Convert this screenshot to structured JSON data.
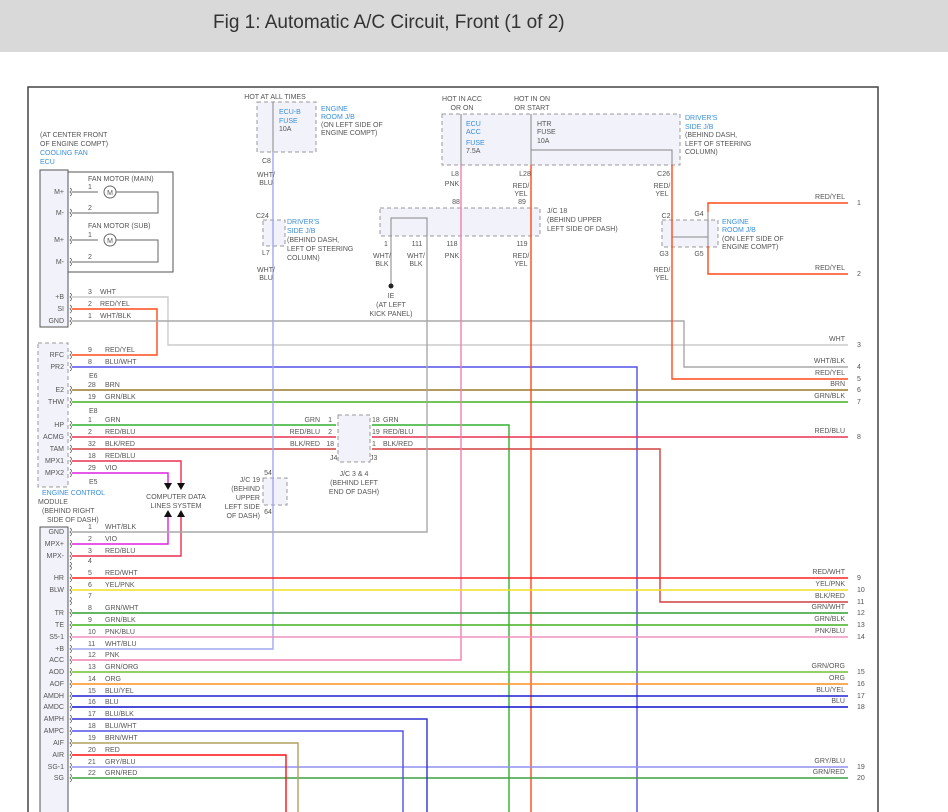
{
  "header": {
    "title": "Fig 1: Automatic A/C Circuit, Front (1 of 2)"
  },
  "wire_colors": {
    "WHT": "#cccccc",
    "WHT/BLK": "#a8a8a8",
    "WHT/BLU": "#a0a8f0",
    "RED/YEL": "#ff4a1a",
    "BLU/WHT": "#5050e8",
    "BRN": "#9a7a2a",
    "GRN/BLK": "#40b020",
    "GRN": "#30b030",
    "RED/BLU": "#e83050",
    "BLK/RED": "#d04040",
    "VIO": "#e020e0",
    "PNK": "#f080b0",
    "RED/WHT": "#ff2020",
    "YEL/PNK": "#f0e020",
    "GRN/WHT": "#30a030",
    "PNK/BLU": "#f090c0",
    "GRN/ORG": "#70c030",
    "ORG": "#ff9020",
    "BLU/YEL": "#2020d0",
    "BLU": "#1010d0",
    "BLU/BLK": "#3030d0",
    "BRN/WHT": "#b0a060",
    "RED": "#ff1010",
    "GRY/BLU": "#9090f0",
    "GRN/RED": "#40a040"
  },
  "labels": {
    "hot_all_times": "HOT AT ALL TIMES",
    "hot_acc_1": "HOT IN ACC",
    "hot_acc_2": "OR ON",
    "hot_on_1": "HOT IN ON",
    "hot_on_2": "OR START",
    "ecub_1": "ECU-B",
    "ecub_2": "FUSE",
    "ecub_3": "10A",
    "erjb_1": "ENGINE",
    "erjb_2": "ROOM J/B",
    "erjb_3": "(ON LEFT SIDE OF",
    "erjb_4": "ENGINE COMPT)",
    "ecuacc_1": "ECU",
    "ecuacc_2": "ACC",
    "ecuacc_3": "FUSE",
    "ecuacc_4": "7.5A",
    "htr_1": "HTR",
    "htr_2": "FUSE",
    "htr_3": "10A",
    "dsjb_1": "DRIVER'S",
    "dsjb_2": "SIDE J/B",
    "dsjb_3": "(BEHIND DASH,",
    "dsjb_4": "LEFT OF STEERING",
    "dsjb_5": "COLUMN)",
    "cf_loc_1": "(AT CENTER FRONT",
    "cf_loc_2": "OF ENGINE COMPT)",
    "cf_1": "COOLING FAN",
    "cf_2": "ECU",
    "fan_main": "FAN MOTOR (MAIN)",
    "fan_sub": "FAN MOTOR (SUB)",
    "motor": "M",
    "c8": "C8",
    "wht_blu": "WHT/",
    "blu": "BLU",
    "c24": "C24",
    "l7": "L7",
    "l8": "L8",
    "pnk": "PNK",
    "l28": "L28",
    "red_": "RED/",
    "yel": "YEL",
    "c26": "C26",
    "p88": "88",
    "p89": "89",
    "jc18_1": "J/C 18",
    "jc18_2": "(BEHIND UPPER",
    "jc18_3": "LEFT SIDE OF DASH)",
    "p1": "1",
    "p111": "111",
    "p118": "118",
    "p119": "119",
    "wht_": "WHT/",
    "blk": "BLK",
    "ie_1": "IE",
    "ie_2": "(AT LEFT",
    "ie_3": "KICK PANEL)",
    "c2": "C2",
    "g4": "G4",
    "g3": "G3",
    "g5": "G5",
    "e6": "E6",
    "e8": "E8",
    "e5": "E5",
    "ecm_1": "ENGINE CONTROL",
    "ecm_2": "MODULE",
    "ecm_3": "(BEHIND RIGHT",
    "ecm_4": "SIDE OF DASH)",
    "cdl_1": "COMPUTER DATA",
    "cdl_2": "LINES SYSTEM",
    "jc19_1": "J/C 19",
    "jc19_2": "(BEHIND",
    "jc19_3": "UPPER",
    "jc19_4": "LEFT SIDE",
    "jc19_5": "OF DASH)",
    "p54": "54",
    "p64": "64",
    "jc34_1": "J/C 3 & 4",
    "jc34_2": "(BEHIND LEFT",
    "jc34_3": "END OF DASH)",
    "j4": "J4",
    "j3": "J3",
    "jl_grn": "GRN",
    "jl_redblu": "RED/BLU",
    "jl_blkred": "BLK/RED",
    "jl_1": "1",
    "jl_2": "2",
    "jl_18": "18",
    "jr_grn": "GRN",
    "jr_redblu": "RED/BLU",
    "jr_blkred": "BLK/RED",
    "jr_18": "18",
    "jr_19": "19",
    "jr_1": "1"
  },
  "cooling_fan_pins": [
    {
      "name": "M+",
      "num": "1"
    },
    {
      "name": "M-",
      "num": "2"
    },
    {
      "name": "M+",
      "num": "1"
    },
    {
      "name": "M-",
      "num": "2"
    },
    {
      "name": "+B",
      "num": "3",
      "wire": "WHT"
    },
    {
      "name": "SI",
      "num": "2",
      "wire": "RED/YEL"
    },
    {
      "name": "GND",
      "num": "1",
      "wire": "WHT/BLK"
    }
  ],
  "ecm_upper_pins": [
    {
      "name": "RFC",
      "num": "9",
      "wire": "RED/YEL"
    },
    {
      "name": "PR2",
      "num": "8",
      "wire": "BLU/WHT"
    },
    {
      "name": "E2",
      "num": "28",
      "wire": "BRN"
    },
    {
      "name": "THW",
      "num": "19",
      "wire": "GRN/BLK"
    },
    {
      "name": "HP",
      "num": "1",
      "wire": "GRN"
    },
    {
      "name": "ACMG",
      "num": "2",
      "wire": "RED/BLU"
    },
    {
      "name": "TAM",
      "num": "32",
      "wire": "BLK/RED"
    },
    {
      "name": "MPX1",
      "num": "18",
      "wire": "RED/BLU"
    },
    {
      "name": "MPX2",
      "num": "29",
      "wire": "VIO"
    }
  ],
  "ecm_lower_pins": [
    {
      "name": "GND",
      "num": "1",
      "wire": "WHT/BLK"
    },
    {
      "name": "MPX+",
      "num": "2",
      "wire": "VIO"
    },
    {
      "name": "MPX-",
      "num": "3",
      "wire": "RED/BLU"
    },
    {
      "name": "",
      "num": "4",
      "wire": ""
    },
    {
      "name": "HR",
      "num": "5",
      "wire": "RED/WHT"
    },
    {
      "name": "BLW",
      "num": "6",
      "wire": "YEL/PNK"
    },
    {
      "name": "",
      "num": "7",
      "wire": ""
    },
    {
      "name": "TR",
      "num": "8",
      "wire": "GRN/WHT"
    },
    {
      "name": "TE",
      "num": "9",
      "wire": "GRN/BLK"
    },
    {
      "name": "S5-1",
      "num": "10",
      "wire": "PNK/BLU"
    },
    {
      "name": "+B",
      "num": "11",
      "wire": "WHT/BLU"
    },
    {
      "name": "ACC",
      "num": "12",
      "wire": "PNK"
    },
    {
      "name": "AOD",
      "num": "13",
      "wire": "GRN/ORG"
    },
    {
      "name": "AOF",
      "num": "14",
      "wire": "ORG"
    },
    {
      "name": "AMDH",
      "num": "15",
      "wire": "BLU/YEL"
    },
    {
      "name": "AMDC",
      "num": "16",
      "wire": "BLU"
    },
    {
      "name": "AMPH",
      "num": "17",
      "wire": "BLU/BLK"
    },
    {
      "name": "AMPC",
      "num": "18",
      "wire": "BLU/WHT"
    },
    {
      "name": "AIF",
      "num": "19",
      "wire": "BRN/WHT"
    },
    {
      "name": "AIR",
      "num": "20",
      "wire": "RED"
    },
    {
      "name": "SG-1",
      "num": "21",
      "wire": "GRY/BLU"
    },
    {
      "name": "SG",
      "num": "22",
      "wire": "GRN/RED"
    }
  ],
  "right_outputs": [
    {
      "num": "1",
      "wire": "RED/YEL"
    },
    {
      "num": "2",
      "wire": "RED/YEL"
    },
    {
      "num": "3",
      "wire": "WHT"
    },
    {
      "num": "4",
      "wire": "WHT/BLK"
    },
    {
      "num": "5",
      "wire": "RED/YEL"
    },
    {
      "num": "6",
      "wire": "BRN"
    },
    {
      "num": "7",
      "wire": "GRN/BLK"
    },
    {
      "num": "8",
      "wire": "RED/BLU"
    },
    {
      "num": "9",
      "wire": "RED/WHT"
    },
    {
      "num": "10",
      "wire": "YEL/PNK"
    },
    {
      "num": "11",
      "wire": "BLK/RED"
    },
    {
      "num": "12",
      "wire": "GRN/WHT"
    },
    {
      "num": "13",
      "wire": "GRN/BLK"
    },
    {
      "num": "14",
      "wire": "PNK/BLU"
    },
    {
      "num": "15",
      "wire": "GRN/ORG"
    },
    {
      "num": "16",
      "wire": "ORG"
    },
    {
      "num": "17",
      "wire": "BLU/YEL"
    },
    {
      "num": "18",
      "wire": "BLU"
    },
    {
      "num": "19",
      "wire": "GRY/BLU"
    },
    {
      "num": "20",
      "wire": "GRN/RED"
    }
  ]
}
